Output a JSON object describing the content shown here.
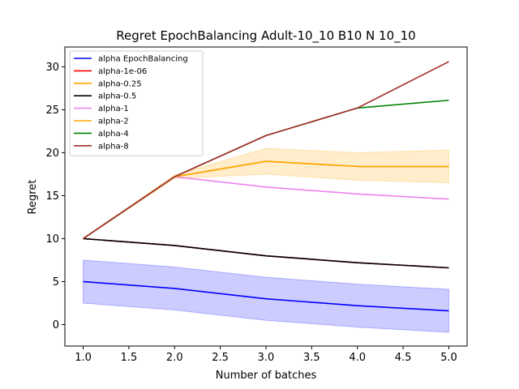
{
  "chart_data": {
    "type": "line",
    "title": "Regret EpochBalancing Adult-10_10 B10 N 10_10",
    "xlabel": "Number of batches",
    "ylabel": "Regret",
    "x": [
      1,
      2,
      3,
      4,
      5
    ],
    "xlim": [
      0.8,
      5.2
    ],
    "ylim": [
      -2.5,
      32.3
    ],
    "xticks": [
      1.0,
      1.5,
      2.0,
      2.5,
      3.0,
      3.5,
      4.0,
      4.5,
      5.0
    ],
    "xtick_labels": [
      "1.0",
      "1.5",
      "2.0",
      "2.5",
      "3.0",
      "3.5",
      "4.0",
      "4.5",
      "5.0"
    ],
    "yticks": [
      0,
      5,
      10,
      15,
      20,
      25,
      30
    ],
    "ytick_labels": [
      "0",
      "5",
      "10",
      "15",
      "20",
      "25",
      "30"
    ],
    "grid": false,
    "legend_position": "top-left",
    "series": [
      {
        "name": "alpha EpochBalancing",
        "color": "#0000ff",
        "values": [
          5.0,
          4.2,
          3.0,
          2.2,
          1.6
        ],
        "lower": [
          2.5,
          1.7,
          0.5,
          -0.3,
          -0.9
        ],
        "upper": [
          7.5,
          6.7,
          5.5,
          4.7,
          4.1
        ]
      },
      {
        "name": "alpha-1e-06",
        "color": "#ff0000",
        "values": [
          10.0,
          9.2,
          8.0,
          7.2,
          6.6
        ]
      },
      {
        "name": "alpha-0.25",
        "color": "#ffa500",
        "values": [
          10.0,
          17.2,
          19.0,
          18.4,
          18.4
        ]
      },
      {
        "name": "alpha-0.5",
        "color": "#000000",
        "values": [
          10.0,
          9.2,
          8.0,
          7.2,
          6.6
        ]
      },
      {
        "name": "alpha-1",
        "color": "#ee82ee",
        "values": [
          10.0,
          17.2,
          16.0,
          15.2,
          14.6
        ]
      },
      {
        "name": "alpha-2",
        "color": "#ffa500",
        "values": [
          10.0,
          17.2,
          19.0,
          18.4,
          18.4
        ],
        "lower": [
          10.0,
          17.0,
          17.5,
          16.8,
          16.5
        ],
        "upper": [
          10.0,
          17.4,
          20.5,
          20.0,
          20.3
        ]
      },
      {
        "name": "alpha-4",
        "color": "#008000",
        "values": [
          10.0,
          17.2,
          22.0,
          25.2,
          26.1
        ]
      },
      {
        "name": "alpha-8",
        "color": "#a52a2a",
        "values": [
          10.0,
          17.2,
          22.0,
          25.2,
          30.6
        ]
      }
    ]
  }
}
